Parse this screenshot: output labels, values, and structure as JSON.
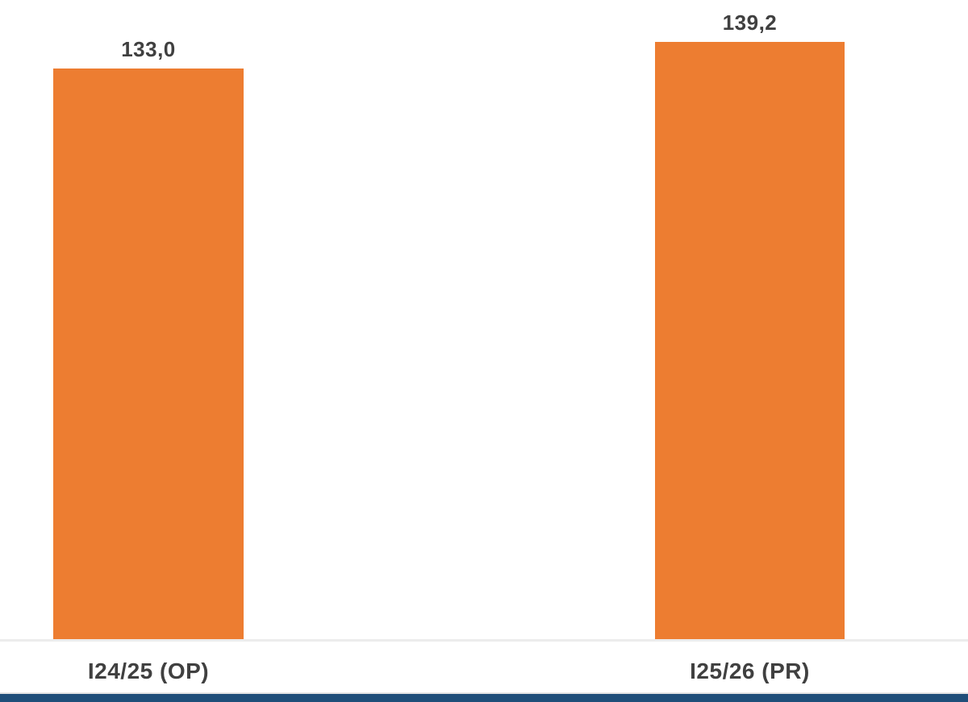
{
  "chart_data": {
    "type": "bar",
    "title": "",
    "xlabel": "",
    "ylabel": "",
    "categories": [
      "I24/25 (OP)",
      "I25/26 (PR)"
    ],
    "values": [
      133.0,
      139.2
    ],
    "data_labels": [
      "133,0",
      "139,2"
    ],
    "ylim": [
      0,
      149
    ],
    "grid": false,
    "legend": false,
    "colors": {
      "bar": "#ED7D31",
      "label_text": "#404040",
      "axis_line": "#ECECEC",
      "footer_bar": "#1F4E79",
      "background": "#FFFFFF"
    }
  }
}
